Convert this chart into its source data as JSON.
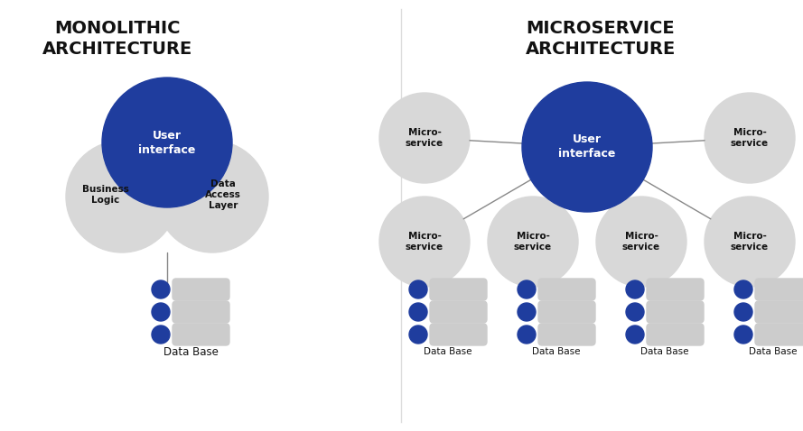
{
  "bg_color": "#ffffff",
  "blue_color": "#1f3d9e",
  "gray_color": "#d8d8d8",
  "line_color": "#888888",
  "dot_color": "#1f3d9e",
  "bar_color": "#cccccc",
  "text_dark": "#111111",
  "text_white": "#ffffff",
  "mono_title": "MONOLITHIC\nARCHITECTURE",
  "micro_title": "MICROSERVICE\nARCHITECTURE",
  "ui_label": "User\ninterface",
  "biz_label": "Business\nLogic",
  "dal_label": "Data\nAccess\nLayer",
  "ms_label": "Micro-\nservice",
  "db_label": "Data Base",
  "fig_w": 8.89,
  "fig_h": 4.78,
  "dpi": 100
}
